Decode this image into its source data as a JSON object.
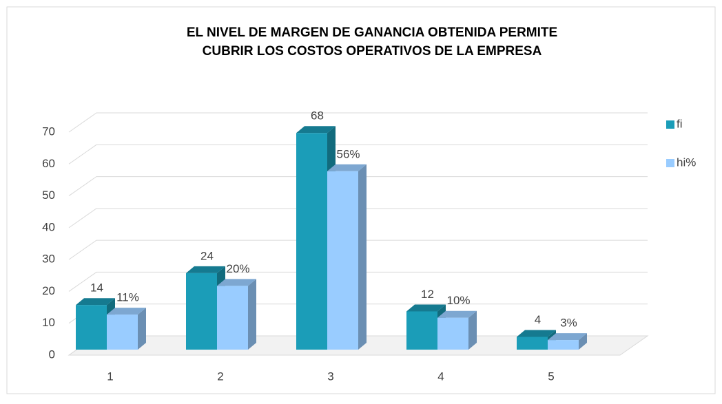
{
  "chart_data": {
    "type": "bar3d",
    "title": [
      "EL NIVEL DE MARGEN DE GANANCIA OBTENIDA PERMITE",
      "CUBRIR LOS COSTOS OPERATIVOS DE LA EMPRESA"
    ],
    "categories": [
      "1",
      "2",
      "3",
      "4",
      "5"
    ],
    "series": [
      {
        "name": "fi",
        "color": "#1b9db8",
        "values": [
          14,
          24,
          68,
          12,
          4
        ]
      },
      {
        "name": "hi%",
        "color": "#99ccff",
        "values": [
          11,
          20,
          56,
          10,
          3
        ],
        "value_labels": [
          "11%",
          "20%",
          "56%",
          "10%",
          "3%"
        ]
      }
    ],
    "ylim": [
      0,
      70
    ],
    "yticks": [
      0,
      10,
      20,
      30,
      40,
      50,
      60,
      70
    ],
    "grid": true,
    "legend": "right"
  }
}
